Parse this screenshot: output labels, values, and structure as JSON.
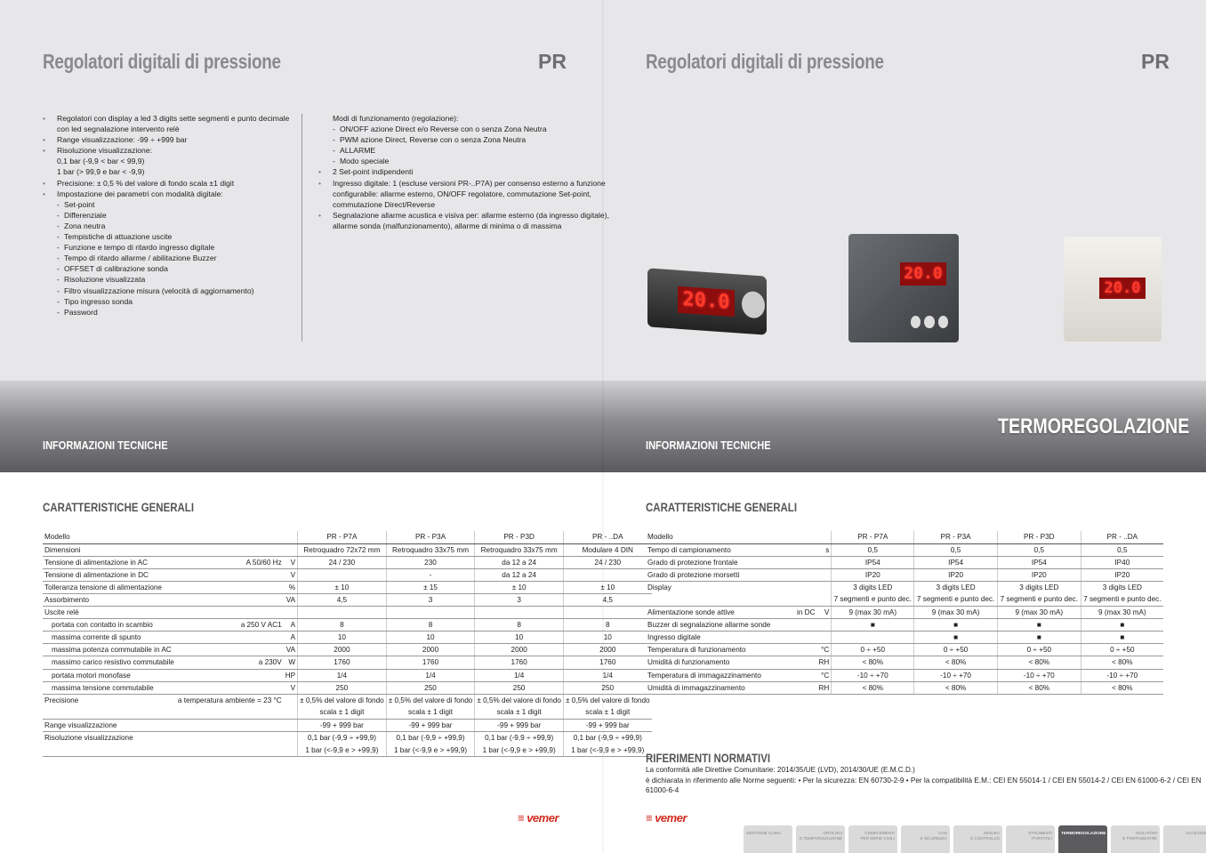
{
  "left": {
    "title": "Regolatori digitali di pressione",
    "code": "PR",
    "info": "INFORMAZIONI TECNICHE",
    "section": "CARATTERISTICHE GENERALI",
    "features_col1": [
      {
        "t": "b",
        "x": "Regolatori con display a led 3 digits sette segmenti e punto decimale"
      },
      {
        "t": "c",
        "x": "con led segnalazione intervento relè"
      },
      {
        "t": "b",
        "x": "Range visualizzazione: -99 ÷ +999 bar"
      },
      {
        "t": "b",
        "x": "Risoluzione visualizzazione:"
      },
      {
        "t": "c",
        "x": "0,1 bar (-9,9 < bar < 99,9)"
      },
      {
        "t": "c",
        "x": "1 bar (> 99,9 e bar < -9,9)"
      },
      {
        "t": "b",
        "x": "Precisione: ± 0,5 % del valore di fondo scala ±1 digit"
      },
      {
        "t": "b",
        "x": "Impostazione dei parametri con modalità digitale:"
      },
      {
        "t": "d",
        "x": "Set-point"
      },
      {
        "t": "d",
        "x": "Differenziale"
      },
      {
        "t": "d",
        "x": "Zona neutra"
      },
      {
        "t": "d",
        "x": "Tempistiche di attuazione uscite"
      },
      {
        "t": "d",
        "x": "Funzione e tempo di ritardo ingresso digitale"
      },
      {
        "t": "d",
        "x": "Tempo di ritardo allarme / abilitazione Buzzer"
      },
      {
        "t": "d",
        "x": "OFFSET di calibrazione sonda"
      },
      {
        "t": "d",
        "x": "Risoluzione visualizzata"
      },
      {
        "t": "d",
        "x": "Filtro visualizzazione misura (velocità di aggiornamento)"
      },
      {
        "t": "d",
        "x": "Tipo ingresso sonda"
      },
      {
        "t": "d",
        "x": "Password"
      }
    ],
    "features_col2": [
      {
        "t": "c",
        "x": "Modi di funzionamento (regolazione):"
      },
      {
        "t": "d",
        "x": "ON/OFF azione Direct e/o Reverse con o senza Zona Neutra"
      },
      {
        "t": "d",
        "x": "PWM azione Direct, Reverse con o senza Zona Neutra"
      },
      {
        "t": "d",
        "x": "ALLARME"
      },
      {
        "t": "d",
        "x": "Modo speciale"
      },
      {
        "t": "b",
        "x": "2 Set-point indipendenti"
      },
      {
        "t": "b",
        "x": "Ingresso digitale: 1 (escluse versioni PR-..P7A) per consenso esterno a funzione"
      },
      {
        "t": "c",
        "x": "configurabile: allarme esterno, ON/OFF regolatore, commutazione Set-point,"
      },
      {
        "t": "c",
        "x": "commutazione Direct/Reverse"
      },
      {
        "t": "b",
        "x": "Segnalazione allarme acustica e visiva per: allarme esterno (da ingresso digitale),"
      },
      {
        "t": "c",
        "x": "allarme sonda (malfunzionamento), allarme di minima o di massima"
      }
    ],
    "table": {
      "header": [
        "Modello",
        "",
        "",
        "PR - P7A",
        "PR - P3A",
        "PR - P3D",
        "PR - ..DA"
      ],
      "rows": [
        {
          "c": [
            "Dimensioni",
            "",
            "",
            "Retroquadro 72x72 mm",
            "Retroquadro 33x75 mm",
            "Retroquadro 33x75 mm",
            "Modulare 4 DIN"
          ]
        },
        {
          "c": [
            "Tensione di alimentazione in AC",
            "A 50/60 Hz",
            "V",
            "24 / 230",
            "230",
            "da 12 a 24",
            "24 / 230"
          ]
        },
        {
          "c": [
            "Tensione di alimentazione in DC",
            "",
            "V",
            "",
            "-",
            "da 12 a 24",
            ""
          ]
        },
        {
          "c": [
            "Tolleranza tensione di alimentazione",
            "",
            "%",
            "± 10",
            "± 15",
            "± 10",
            "± 10"
          ]
        },
        {
          "c": [
            "Assorbimento",
            "",
            "VA",
            "4,5",
            "3",
            "3",
            "4,5"
          ]
        },
        {
          "c": [
            "Uscite relè",
            "",
            "",
            "",
            "",
            "",
            ""
          ]
        },
        {
          "s": 1,
          "c": [
            "portata con contatto in scambio",
            "a 250 V AC1",
            "A",
            "8",
            "8",
            "8",
            "8"
          ]
        },
        {
          "s": 1,
          "c": [
            "massima corrente di spunto",
            "",
            "A",
            "10",
            "10",
            "10",
            "10"
          ]
        },
        {
          "s": 1,
          "c": [
            "massima potenza commutabile in AC",
            "",
            "VA",
            "2000",
            "2000",
            "2000",
            "2000"
          ]
        },
        {
          "s": 1,
          "c": [
            "massimo carico resistivo commutabile",
            "a 230V",
            "W",
            "1760",
            "1760",
            "1760",
            "1760"
          ]
        },
        {
          "s": 1,
          "c": [
            "portata motori monofase",
            "",
            "HP",
            "1/4",
            "1/4",
            "1/4",
            "1/4"
          ]
        },
        {
          "s": 1,
          "c": [
            "massima tensione commutabile",
            "",
            "V",
            "250",
            "250",
            "250",
            "250"
          ]
        },
        {
          "c": [
            "Precisione",
            "a temperatura ambiente = 23 °C",
            "",
            "± 0,5% del valore di fondo",
            "± 0,5% del valore di fondo",
            "± 0,5% del valore di fondo",
            "± 0,5% del valore di fondo"
          ],
          "c2": [
            "",
            "",
            "",
            "scala ± 1 digit",
            "scala ± 1 digit",
            "scala ± 1 digit",
            "scala ± 1 digit"
          ]
        },
        {
          "c": [
            "Range visualizzazione",
            "",
            "",
            "-99 + 999 bar",
            "-99 + 999 bar",
            "-99 + 999 bar",
            "-99 + 999 bar"
          ]
        },
        {
          "c": [
            "Risoluzione visualizzazione",
            "",
            "",
            "0,1 bar (-9,9 ÷ +99,9)",
            "0,1 bar (-9,9 ÷ +99,9)",
            "0,1 bar (-9,9 ÷ +99,9)",
            "0,1 bar (-9,9 ÷ +99,9)"
          ],
          "c2": [
            "",
            "",
            "",
            "1 bar (<-9,9 e > +99,9)",
            "1 bar (<-9,9 e > +99,9)",
            "1 bar (<-9,9 e > +99,9)",
            "1 bar (<-9,9 e > +99,9)"
          ]
        }
      ]
    },
    "logo": "vemer"
  },
  "right": {
    "title": "Regolatori digitali di pressione",
    "code": "PR",
    "info": "INFORMAZIONI TECNICHE",
    "category": "TERMOREGOLAZIONE",
    "section": "CARATTERISTICHE GENERALI",
    "display_readout": "20.0",
    "table": {
      "header": [
        "Modello",
        "",
        "",
        "PR - P7A",
        "PR - P3A",
        "PR - P3D",
        "PR - ..DA"
      ],
      "rows": [
        {
          "c": [
            "Tempo di campionamento",
            "",
            "s",
            "0,5",
            "0,5",
            "0,5",
            "0,5"
          ]
        },
        {
          "c": [
            "Grado  di protezione frontale",
            "",
            "",
            "IP54",
            "IP54",
            "IP54",
            "IP40"
          ]
        },
        {
          "c": [
            "Grado di protezione morsetti",
            "",
            "",
            "IP20",
            "IP20",
            "IP20",
            "IP20"
          ]
        },
        {
          "c": [
            "Display",
            "",
            "",
            "3 digits LED",
            "3 digits LED",
            "3 digits LED",
            "3 digits LED"
          ],
          "c2": [
            "",
            "",
            "",
            "7 segmenti e punto dec.",
            "7 segmenti e punto dec.",
            "7 segmenti e punto dec.",
            "7 segmenti e punto dec."
          ]
        },
        {
          "c": [
            "Alimentazione sonde attive",
            "in DC",
            "V",
            "9 (max 30 mA)",
            "9 (max 30 mA)",
            "9 (max 30 mA)",
            "9 (max 30 mA)"
          ]
        },
        {
          "c": [
            "Buzzer di segnalazione allarme sonde",
            "",
            "",
            "■",
            "■",
            "■",
            "■"
          ]
        },
        {
          "c": [
            "Ingresso digitale",
            "",
            "",
            "",
            "■",
            "■",
            "■"
          ]
        },
        {
          "c": [
            "Temperatura di funzionamento",
            "",
            "°C",
            "0 ÷ +50",
            "0 ÷ +50",
            "0 ÷ +50",
            "0 ÷ +50"
          ]
        },
        {
          "c": [
            "Umidità di funzionamento",
            "",
            "RH",
            "< 80%",
            "< 80%",
            "< 80%",
            "< 80%"
          ]
        },
        {
          "c": [
            "Temperatura di immagazzinamento",
            "",
            "°C",
            "-10 ÷ +70",
            "-10 ÷ +70",
            "-10 ÷ +70",
            "-10 ÷ +70"
          ]
        },
        {
          "c": [
            "Umidità di immagazzinamento",
            "",
            "RH",
            "< 80%",
            "< 80%",
            "< 80%",
            "< 80%"
          ]
        }
      ]
    },
    "norms": {
      "title": "RIFERIMENTI NORMATIVI",
      "line1": "La conformità alle Direttive Comunitarie: 2014/35/UE (LVD), 2014/30/UE (E.M.C.D.)",
      "line2": "è dichiarata in riferimento alle Norme seguenti: • Per la sicurezza: EN 60730-2-9 • Per la compatibilità E.M.: CEI EN 55014-1 / CEI EN 55014-2 / CEI EN 61000-6-2 / CEI EN 61000-6-4"
    },
    "logo": "vemer",
    "tabs": [
      {
        "l1": "GESTIONE CLIMA",
        "l2": ""
      },
      {
        "l1": "OROLOGI",
        "l2": "E TEMPORIZZAZIONE"
      },
      {
        "l1": "COMPLEMENTI",
        "l2": "PER SERIE CIVILI"
      },
      {
        "l1": "GAS",
        "l2": "E SICUREZZA"
      },
      {
        "l1": "MISURA",
        "l2": "E CONTROLLO"
      },
      {
        "l1": "STRUMENTI",
        "l2": "PORTATILI"
      },
      {
        "l1": "TERMOREGOLAZIONE",
        "l2": "",
        "active": true
      },
      {
        "l1": "ISOLATORI",
        "l2": "E PORTASBARRE"
      },
      {
        "l1": "ACCESSORI",
        "l2": ""
      }
    ]
  },
  "colors": {
    "accent_red": "#d42a1e",
    "band_dark": "#5b5b5f",
    "active_tab": "#5c5c5f"
  }
}
